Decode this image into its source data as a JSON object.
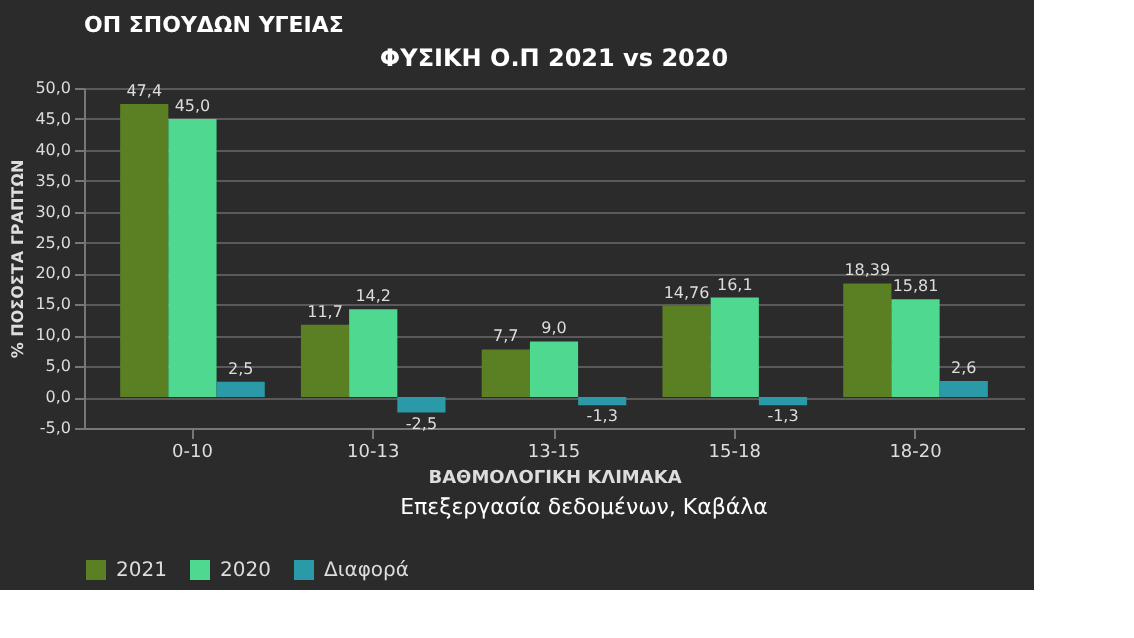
{
  "chart_data": {
    "type": "bar",
    "title": "ΦΥΣΙΚΗ Ο.Π 2021 vs 2020",
    "xlabel": "ΒΑΘΜΟΛΟΓΙΚΗ ΚΛΙΜΑΚΑ",
    "ylabel": "% ΠΟΣΟΣΤΑ ΓΡΑΠΤΩΝ",
    "categories": [
      "0-10",
      "10-13",
      "13-15",
      "15-18",
      "18-20"
    ],
    "series": [
      {
        "name": "2021",
        "color": "#5b7f23",
        "values": [
          47.4,
          11.7,
          7.7,
          14.76,
          18.39
        ],
        "value_labels": [
          "47,4",
          "11,7",
          "7,7",
          "14,76",
          "18,39"
        ]
      },
      {
        "name": "2020",
        "color": "#4fd890",
        "values": [
          45.0,
          14.2,
          9.0,
          16.1,
          15.81
        ],
        "value_labels": [
          "45,0",
          "14,2",
          "9,0",
          "16,1",
          "15,81"
        ]
      },
      {
        "name": "Διαφορά",
        "color": "#2a9aa8",
        "values": [
          2.5,
          -2.5,
          -1.3,
          -1.3,
          2.6
        ],
        "value_labels": [
          "2,5",
          "-2,5",
          "-1,3",
          "-1,3",
          "2,6"
        ]
      }
    ],
    "ylim": [
      -5,
      50
    ],
    "yticks": [
      {
        "value": -5,
        "label": "-5,0"
      },
      {
        "value": 0,
        "label": "0,0"
      },
      {
        "value": 5,
        "label": "5,0"
      },
      {
        "value": 10,
        "label": "10,0"
      },
      {
        "value": 15,
        "label": "15,0"
      },
      {
        "value": 20,
        "label": "20,0"
      },
      {
        "value": 25,
        "label": "25,0"
      },
      {
        "value": 30,
        "label": "30,0"
      },
      {
        "value": 35,
        "label": "35,0"
      },
      {
        "value": 40,
        "label": "40,0"
      },
      {
        "value": 45,
        "label": "45,0"
      },
      {
        "value": 50,
        "label": "50,0"
      }
    ],
    "grid": "y",
    "legend": "bottom",
    "annotations": [
      "ΟΠ ΣΠΟΥΔΩΝ ΥΓΕΙΑΣ",
      "Επεξεργασία δεδομένων, Καβάλα"
    ]
  }
}
